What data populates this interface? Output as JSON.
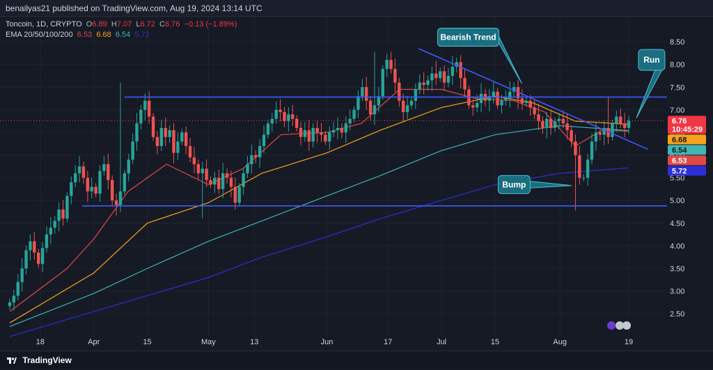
{
  "header": {
    "published_by": "benailyas21 published on TradingView.com, Aug 19, 2024 13:14 UTC"
  },
  "legend": {
    "symbol": "Toncoin, 1D, CRYPTO",
    "o_label": "O",
    "o": "6.89",
    "h_label": "H",
    "h": "7.07",
    "l_label": "L",
    "l": "6.72",
    "c_label": "C",
    "c": "6.76",
    "change": "−0.13 (−1.89%)",
    "ema_label": "EMA 20/50/100/200",
    "ema20": "6.53",
    "ema50": "6.68",
    "ema100": "6.54",
    "ema200": "5.72"
  },
  "footer": {
    "brand": "TradingView"
  },
  "colors": {
    "background": "#161a25",
    "grid": "#1f2330",
    "up": "#26a69a",
    "down": "#ef5350",
    "ema20": "#e04848",
    "ema50": "#f7a21b",
    "ema100": "#3fb5b5",
    "ema200": "#2d2fd6",
    "trendline": "#3d5afe",
    "callout": "#1b6e80"
  },
  "chart_data": {
    "type": "candlestick",
    "symbol": "Toncoin",
    "timeframe": "1D",
    "y_axis_labels": [
      "8.50",
      "8.00",
      "7.50",
      "7.00",
      "6.50",
      "6.00",
      "5.50",
      "5.00",
      "4.50",
      "4.00",
      "3.50",
      "3.00",
      "2.50"
    ],
    "ylim": [
      2.15,
      8.9
    ],
    "x_axis_labels": [
      "18",
      "Apr",
      "15",
      "May",
      "13",
      "Jun",
      "17",
      "Jul",
      "15",
      "Aug",
      "19"
    ],
    "x_axis_dates": [
      "2024-03-18",
      "2024-04-01",
      "2024-04-15",
      "2024-05-01",
      "2024-05-13",
      "2024-06-01",
      "2024-06-17",
      "2024-07-01",
      "2024-07-15",
      "2024-08-01",
      "2024-08-19"
    ],
    "date_range": [
      "2024-03-10",
      "2024-08-19"
    ],
    "closes": [
      2.75,
      2.9,
      3.2,
      3.5,
      3.9,
      4.1,
      3.85,
      3.6,
      3.95,
      4.25,
      4.4,
      4.55,
      4.8,
      4.6,
      5.1,
      5.4,
      5.6,
      5.75,
      5.5,
      5.2,
      5.3,
      5.15,
      5.65,
      5.8,
      5.45,
      5.0,
      4.9,
      5.2,
      5.6,
      5.9,
      6.3,
      6.7,
      7.0,
      7.2,
      6.85,
      6.4,
      6.2,
      6.6,
      6.4,
      6.55,
      6.05,
      6.3,
      6.5,
      6.2,
      5.95,
      5.8,
      5.6,
      5.7,
      5.45,
      5.35,
      5.5,
      5.25,
      5.6,
      5.5,
      5.3,
      4.95,
      5.3,
      5.6,
      5.8,
      6.0,
      5.95,
      6.2,
      6.45,
      6.7,
      6.8,
      7.0,
      6.95,
      6.75,
      6.9,
      6.8,
      6.6,
      6.4,
      6.55,
      6.3,
      6.6,
      6.5,
      6.45,
      6.3,
      6.5,
      6.55,
      6.6,
      6.5,
      6.7,
      6.8,
      7.0,
      7.3,
      7.5,
      7.2,
      6.9,
      7.1,
      7.3,
      7.9,
      8.1,
      7.9,
      7.6,
      7.2,
      6.95,
      7.1,
      7.2,
      7.45,
      7.6,
      7.55,
      7.65,
      7.8,
      7.7,
      7.85,
      7.6,
      7.75,
      7.95,
      8.05,
      7.7,
      7.45,
      7.1,
      7.05,
      7.15,
      7.35,
      7.2,
      7.3,
      7.4,
      7.1,
      7.2,
      7.25,
      7.4,
      7.5,
      7.25,
      7.15,
      7.2,
      7.05,
      6.9,
      6.75,
      6.6,
      6.8,
      6.6,
      6.75,
      6.8,
      6.7,
      6.55,
      6.3,
      6.0,
      5.5,
      5.5,
      5.9,
      6.3,
      6.5,
      6.45,
      6.6,
      6.4,
      6.7,
      6.85,
      6.7,
      6.6,
      6.76
    ],
    "high_points": [
      {
        "date": "2024-04-08",
        "high": 7.6
      },
      {
        "date": "2024-06-13",
        "high": 8.28
      },
      {
        "date": "2024-06-30",
        "high": 8.08
      },
      {
        "date": "2024-08-14",
        "high": 7.27
      }
    ],
    "low_points": [
      {
        "date": "2024-04-29",
        "high": null,
        "low": 4.6
      },
      {
        "date": "2024-08-05",
        "low": 4.78
      }
    ],
    "horizontal_lines": [
      {
        "y": 7.28,
        "from": "2024-04-09",
        "to": "2024-08-29"
      },
      {
        "y": 4.88,
        "from": "2024-03-29",
        "to": "2024-08-29"
      }
    ],
    "trend_lines": [
      {
        "from_date": "2024-06-25",
        "from_y": 8.35,
        "to_date": "2024-08-24",
        "to_y": 6.13
      }
    ],
    "ema_lines": [
      {
        "name": "EMA 20",
        "color": "#e04848",
        "points": [
          [
            "2024-03-10",
            2.55
          ],
          [
            "2024-03-25",
            3.5
          ],
          [
            "2024-04-01",
            4.15
          ],
          [
            "2024-04-10",
            5.2
          ],
          [
            "2024-04-20",
            5.8
          ],
          [
            "2024-05-01",
            5.35
          ],
          [
            "2024-05-10",
            5.7
          ],
          [
            "2024-05-20",
            6.45
          ],
          [
            "2024-06-01",
            6.5
          ],
          [
            "2024-06-10",
            6.7
          ],
          [
            "2024-06-20",
            7.45
          ],
          [
            "2024-07-01",
            7.45
          ],
          [
            "2024-07-10",
            7.25
          ],
          [
            "2024-07-20",
            7.2
          ],
          [
            "2024-07-28",
            6.95
          ],
          [
            "2024-08-05",
            6.2
          ],
          [
            "2024-08-12",
            6.55
          ],
          [
            "2024-08-19",
            6.53
          ]
        ]
      },
      {
        "name": "EMA 50",
        "color": "#f7a21b",
        "points": [
          [
            "2024-03-10",
            2.3
          ],
          [
            "2024-04-01",
            3.4
          ],
          [
            "2024-04-15",
            4.5
          ],
          [
            "2024-05-01",
            4.95
          ],
          [
            "2024-05-15",
            5.6
          ],
          [
            "2024-06-01",
            6.05
          ],
          [
            "2024-06-15",
            6.55
          ],
          [
            "2024-07-01",
            7.05
          ],
          [
            "2024-07-15",
            7.3
          ],
          [
            "2024-07-25",
            7.15
          ],
          [
            "2024-08-05",
            6.75
          ],
          [
            "2024-08-19",
            6.68
          ]
        ]
      },
      {
        "name": "EMA 100",
        "color": "#3fb5b5",
        "points": [
          [
            "2024-03-10",
            2.22
          ],
          [
            "2024-04-01",
            2.95
          ],
          [
            "2024-04-15",
            3.5
          ],
          [
            "2024-05-01",
            4.1
          ],
          [
            "2024-05-15",
            4.55
          ],
          [
            "2024-06-01",
            5.1
          ],
          [
            "2024-06-15",
            5.55
          ],
          [
            "2024-07-01",
            6.1
          ],
          [
            "2024-07-15",
            6.45
          ],
          [
            "2024-08-01",
            6.65
          ],
          [
            "2024-08-19",
            6.54
          ]
        ]
      },
      {
        "name": "EMA 200",
        "color": "#2d2fd6",
        "points": [
          [
            "2024-03-10",
            2.0
          ],
          [
            "2024-04-01",
            2.55
          ],
          [
            "2024-04-15",
            2.9
          ],
          [
            "2024-05-01",
            3.3
          ],
          [
            "2024-05-15",
            3.75
          ],
          [
            "2024-06-01",
            4.2
          ],
          [
            "2024-06-15",
            4.6
          ],
          [
            "2024-07-01",
            5.0
          ],
          [
            "2024-07-15",
            5.35
          ],
          [
            "2024-08-01",
            5.6
          ],
          [
            "2024-08-19",
            5.72
          ]
        ]
      }
    ],
    "annotations": [
      {
        "label": "Bearish Trend",
        "date": "2024-07-08",
        "y": 8.6,
        "pointer_date": "2024-07-22",
        "pointer_y": 7.58
      },
      {
        "label": "Run",
        "date": "2024-08-25",
        "y": 8.1,
        "pointer_date": "2024-08-21",
        "pointer_y": 6.82
      },
      {
        "label": "Bump",
        "date": "2024-07-20",
        "y": 5.35,
        "pointer_date": "2024-08-04",
        "pointer_y": 5.33
      }
    ],
    "price_badges": [
      {
        "value": "6.76",
        "sub": "10:45:29",
        "color": "#f23645",
        "text": "#ffffff",
        "y": 6.76
      },
      {
        "value": "6.68",
        "color": "#f7a21b",
        "text": "#131722",
        "y": 6.68
      },
      {
        "value": "6.54",
        "color": "#3fb5b5",
        "text": "#131722",
        "y": 6.54
      },
      {
        "value": "6.53",
        "color": "#e04848",
        "text": "#ffffff",
        "y": 6.53
      },
      {
        "value": "5.72",
        "color": "#2d2fd6",
        "text": "#ffffff",
        "y": 5.72
      }
    ]
  }
}
